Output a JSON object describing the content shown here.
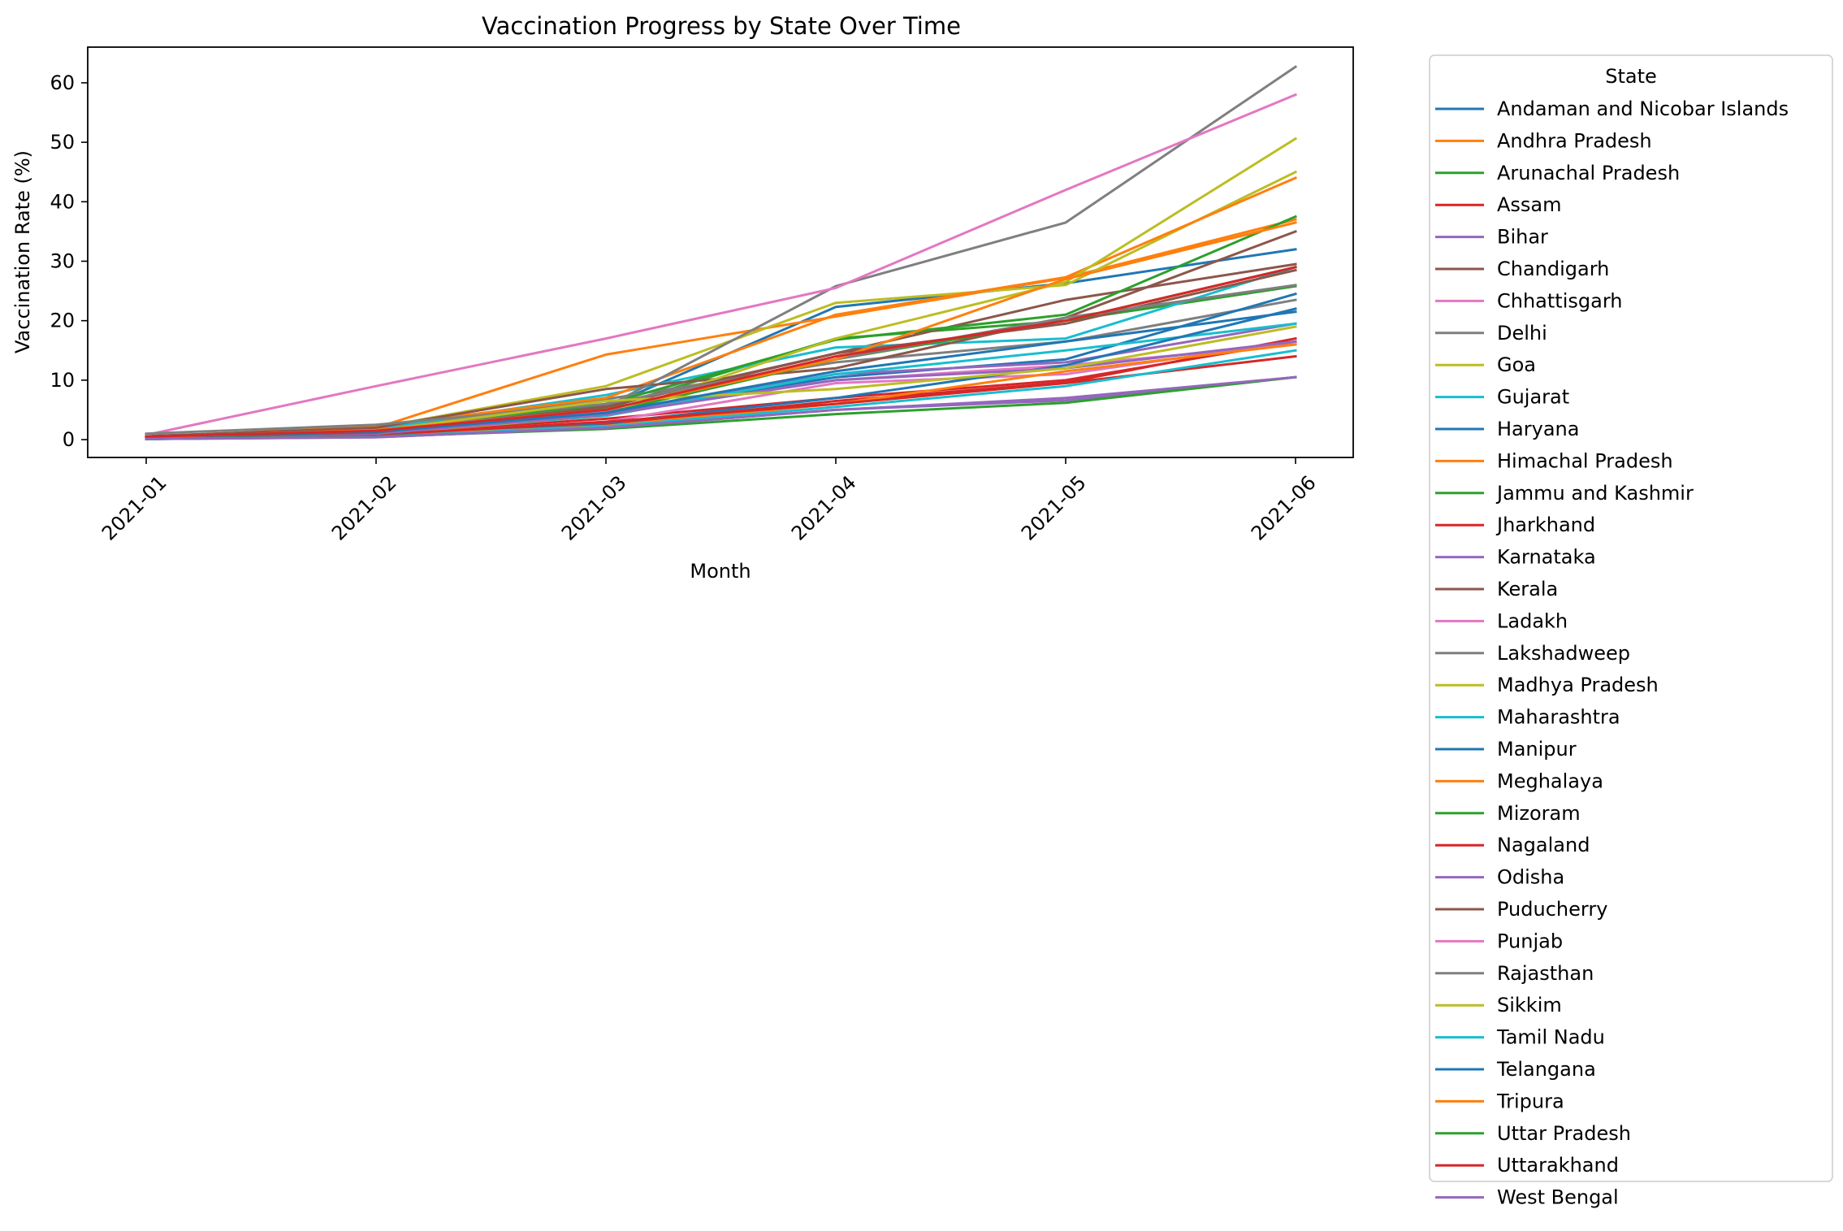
{
  "chart_data": {
    "type": "line",
    "title": "Vaccination Progress by State Over Time",
    "xlabel": "Month",
    "ylabel": "Vaccination Rate (%)",
    "categories": [
      "2021-01",
      "2021-02",
      "2021-03",
      "2021-04",
      "2021-05",
      "2021-06"
    ],
    "ylim": [
      -3,
      66
    ],
    "yticks": [
      0,
      10,
      20,
      30,
      40,
      50,
      60
    ],
    "grid": false,
    "legend": {
      "title": "State",
      "placement": "outside-right"
    },
    "series": [
      {
        "name": "Andaman and Nicobar Islands",
        "color": "#1f77b4",
        "values": [
          0.3,
          1.0,
          5.5,
          22.3,
          26.3,
          32.0
        ]
      },
      {
        "name": "Andhra Pradesh",
        "color": "#ff7f0e",
        "values": [
          0.5,
          2.0,
          14.3,
          20.7,
          27.2,
          37.0
        ]
      },
      {
        "name": "Arunachal Pradesh",
        "color": "#2ca02c",
        "values": [
          0.2,
          1.0,
          5.2,
          17.0,
          20.0,
          25.8
        ]
      },
      {
        "name": "Assam",
        "color": "#d62728",
        "values": [
          0.1,
          0.6,
          2.5,
          6.5,
          9.6,
          17.0
        ]
      },
      {
        "name": "Bihar",
        "color": "#9467bd",
        "values": [
          0.1,
          0.4,
          2.0,
          5.0,
          6.6,
          10.5
        ]
      },
      {
        "name": "Chandigarh",
        "color": "#8c564b",
        "values": [
          0.4,
          1.5,
          5.8,
          14.5,
          23.5,
          29.5
        ]
      },
      {
        "name": "Chhattisgarh",
        "color": "#e377c2",
        "values": [
          0.3,
          1.2,
          4.8,
          10.0,
          12.5,
          16.0
        ]
      },
      {
        "name": "Delhi",
        "color": "#7f7f7f",
        "values": [
          0.6,
          1.8,
          6.8,
          13.0,
          16.5,
          23.5
        ]
      },
      {
        "name": "Goa",
        "color": "#bcbd22",
        "values": [
          0.3,
          2.0,
          9.0,
          23.0,
          26.0,
          45.0
        ]
      },
      {
        "name": "Gujarat",
        "color": "#17becf",
        "values": [
          0.5,
          1.8,
          7.5,
          15.5,
          17.0,
          29.0
        ]
      },
      {
        "name": "Haryana",
        "color": "#1f77b4",
        "values": [
          0.2,
          1.0,
          4.5,
          10.5,
          13.5,
          24.5
        ]
      },
      {
        "name": "Himachal Pradesh",
        "color": "#ff7f0e",
        "values": [
          0.4,
          2.3,
          7.0,
          21.0,
          27.3,
          44.0
        ]
      },
      {
        "name": "Jammu and Kashmir",
        "color": "#2ca02c",
        "values": [
          0.3,
          1.3,
          6.0,
          16.8,
          21.0,
          37.5
        ]
      },
      {
        "name": "Jharkhand",
        "color": "#d62728",
        "values": [
          0.2,
          1.0,
          3.5,
          7.0,
          10.0,
          16.5
        ]
      },
      {
        "name": "Karnataka",
        "color": "#9467bd",
        "values": [
          0.4,
          1.5,
          4.5,
          11.0,
          13.0,
          19.5
        ]
      },
      {
        "name": "Kerala",
        "color": "#8c564b",
        "values": [
          0.6,
          2.0,
          8.5,
          12.0,
          20.5,
          35.0
        ]
      },
      {
        "name": "Ladakh",
        "color": "#e377c2",
        "values": [
          0.2,
          0.8,
          3.0,
          9.5,
          11.0,
          16.5
        ]
      },
      {
        "name": "Lakshadweep",
        "color": "#7f7f7f",
        "values": [
          0.5,
          1.5,
          5.5,
          25.8,
          36.5,
          62.7
        ]
      },
      {
        "name": "Madhya Pradesh",
        "color": "#bcbd22",
        "values": [
          0.2,
          1.0,
          4.0,
          17.0,
          26.5,
          50.6
        ]
      },
      {
        "name": "Maharashtra",
        "color": "#17becf",
        "values": [
          0.3,
          1.2,
          4.0,
          11.0,
          15.0,
          19.5
        ]
      },
      {
        "name": "Manipur",
        "color": "#1f77b4",
        "values": [
          0.1,
          0.7,
          2.8,
          7.0,
          12.5,
          22.0
        ]
      },
      {
        "name": "Meghalaya",
        "color": "#ff7f0e",
        "values": [
          0.1,
          0.6,
          2.3,
          6.0,
          11.5,
          16.0
        ]
      },
      {
        "name": "Mizoram",
        "color": "#2ca02c",
        "values": [
          0.2,
          1.0,
          4.5,
          13.5,
          20.0,
          29.0
        ]
      },
      {
        "name": "Nagaland",
        "color": "#d62728",
        "values": [
          0.1,
          0.8,
          3.0,
          6.0,
          9.5,
          14.0
        ]
      },
      {
        "name": "Odisha",
        "color": "#9467bd",
        "values": [
          0.3,
          1.0,
          4.2,
          10.0,
          12.0,
          16.5
        ]
      },
      {
        "name": "Puducherry",
        "color": "#8c564b",
        "values": [
          0.3,
          1.2,
          5.5,
          14.5,
          19.5,
          28.5
        ]
      },
      {
        "name": "Punjab",
        "color": "#e377c2",
        "values": [
          0.8,
          9.0,
          17.0,
          25.5,
          42.0,
          58.0
        ]
      },
      {
        "name": "Rajasthan",
        "color": "#7f7f7f",
        "values": [
          1.0,
          2.5,
          6.0,
          13.5,
          20.5,
          26.0
        ]
      },
      {
        "name": "Sikkim",
        "color": "#bcbd22",
        "values": [
          0.4,
          1.5,
          6.5,
          8.5,
          12.0,
          19.0
        ]
      },
      {
        "name": "Tamil Nadu",
        "color": "#17becf",
        "values": [
          0.1,
          0.5,
          2.2,
          5.5,
          9.0,
          15.0
        ]
      },
      {
        "name": "Telangana",
        "color": "#1f77b4",
        "values": [
          0.4,
          1.3,
          4.5,
          11.5,
          16.5,
          21.5
        ]
      },
      {
        "name": "Tripura",
        "color": "#ff7f0e",
        "values": [
          0.4,
          1.6,
          5.0,
          13.5,
          27.0,
          36.5
        ]
      },
      {
        "name": "Uttar Pradesh",
        "color": "#2ca02c",
        "values": [
          0.1,
          0.5,
          1.8,
          4.3,
          6.2,
          10.5
        ]
      },
      {
        "name": "Uttarakhand",
        "color": "#d62728",
        "values": [
          0.5,
          1.5,
          5.0,
          14.0,
          20.0,
          29.0
        ]
      },
      {
        "name": "West Bengal",
        "color": "#9467bd",
        "values": [
          0.1,
          0.4,
          2.0,
          5.0,
          7.0,
          10.5
        ]
      }
    ]
  }
}
